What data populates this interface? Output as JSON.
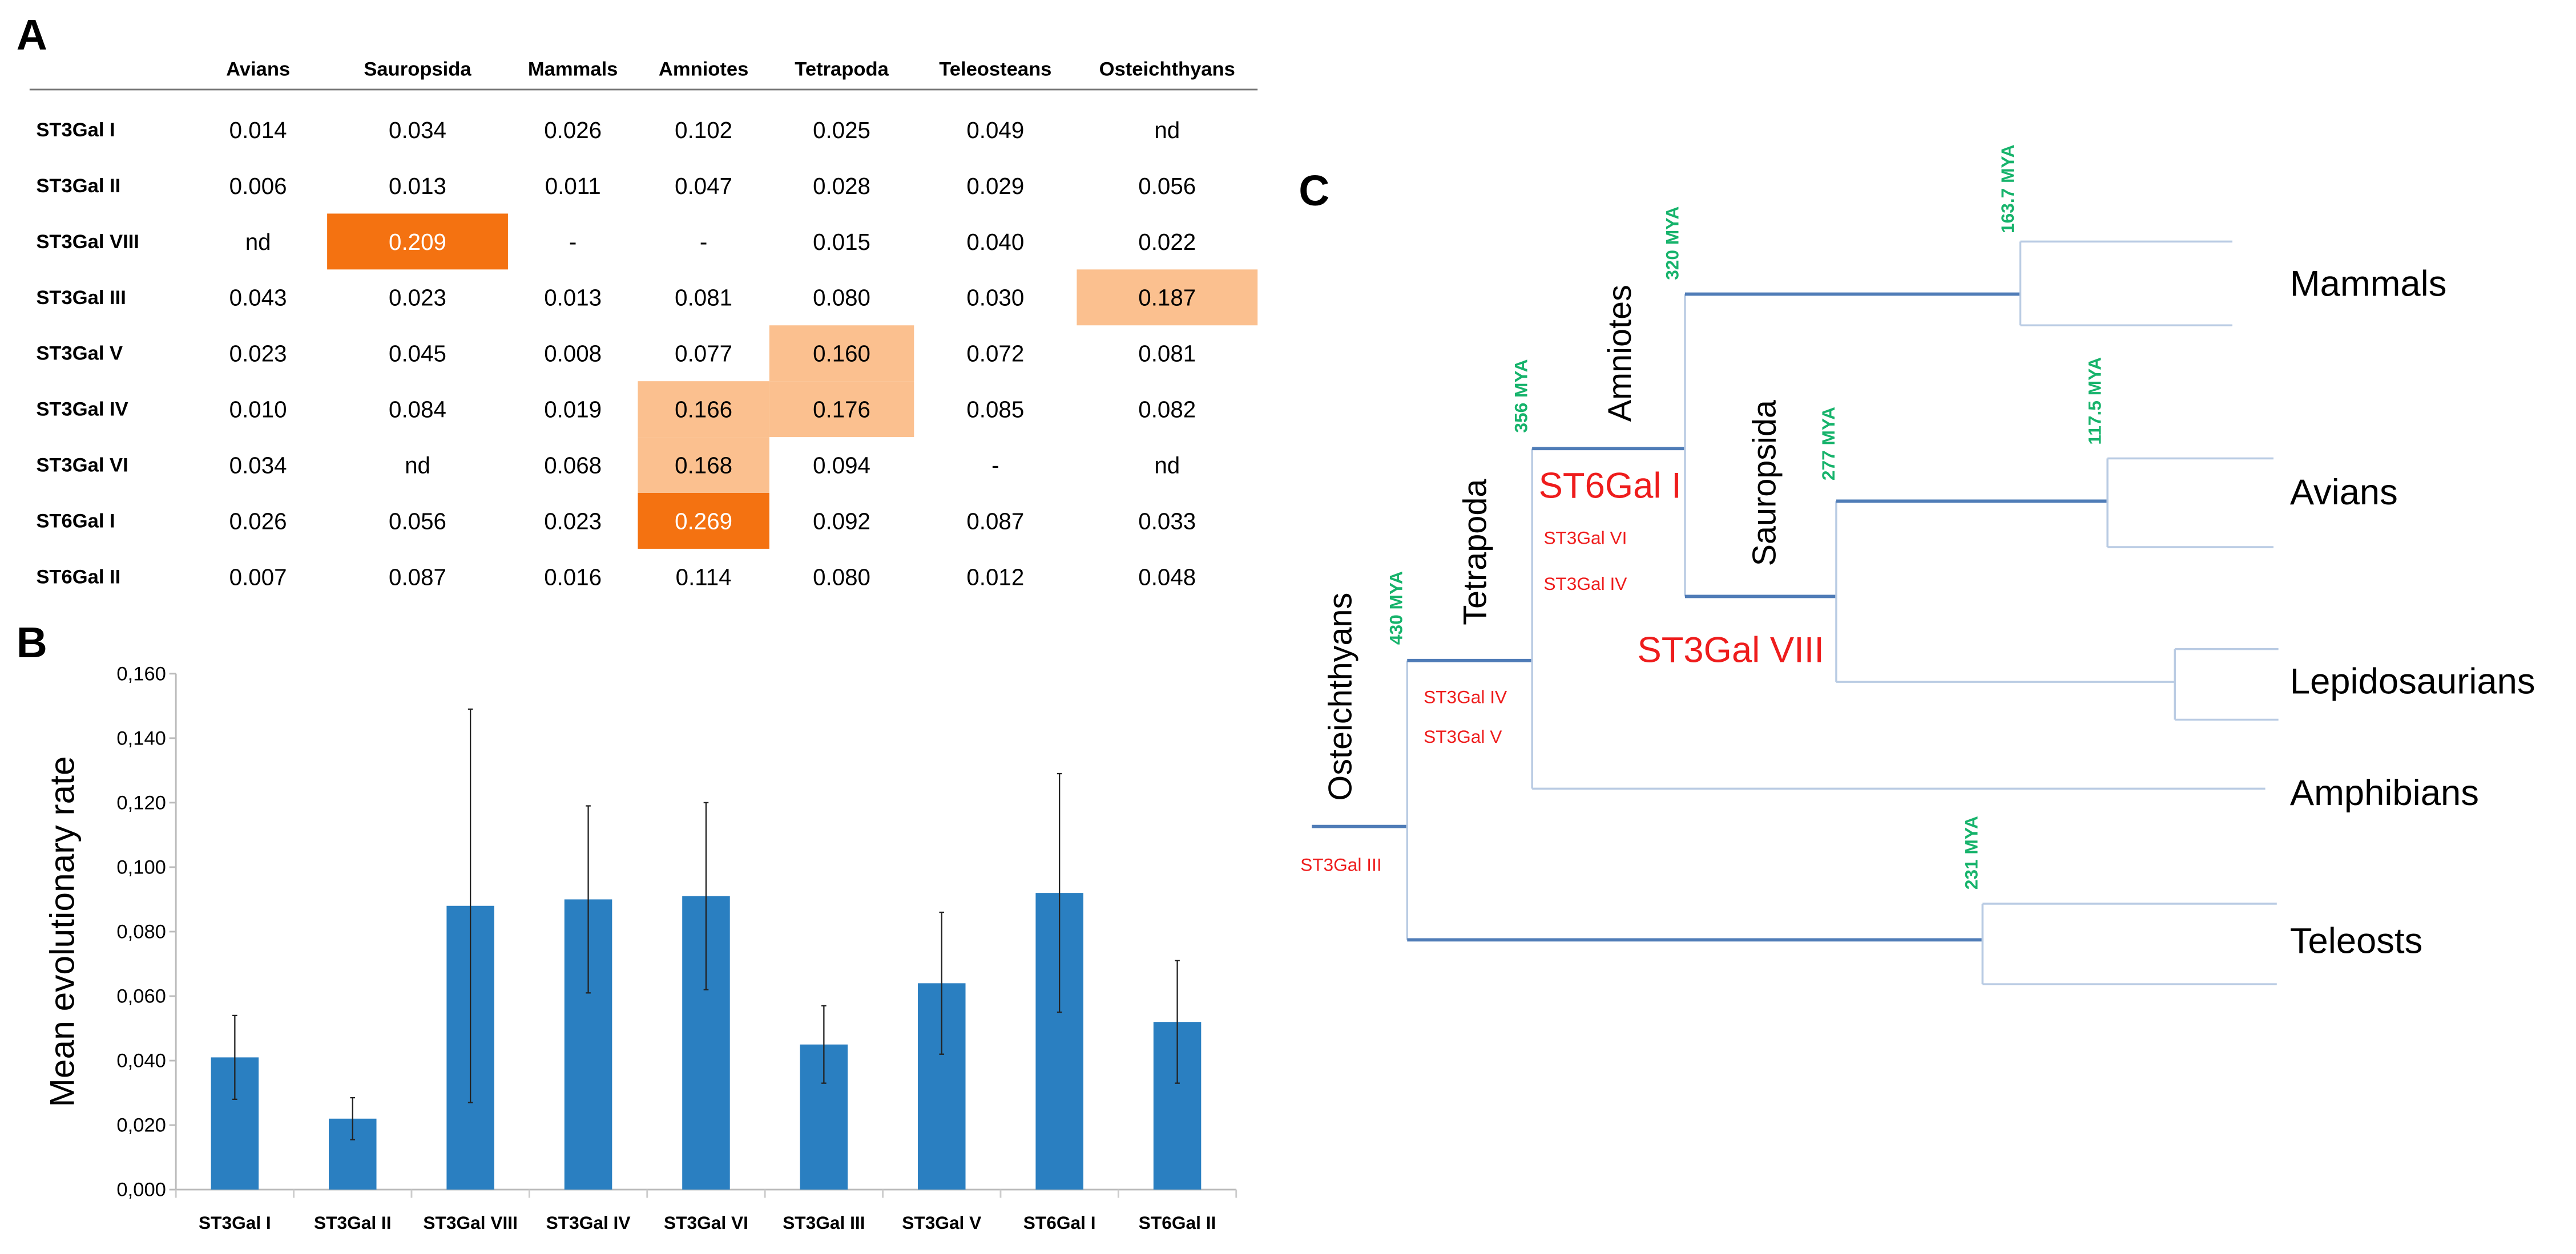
{
  "table": {
    "label": "A",
    "columns": [
      "Avians",
      "Sauropsida",
      "Mammals",
      "Amniotes",
      "Tetrapoda",
      "Teleosteans",
      "Osteichthyans"
    ],
    "rows": [
      {
        "name": "ST3Gal I",
        "cells": [
          {
            "v": "0.014"
          },
          {
            "v": "0.034"
          },
          {
            "v": "0.026"
          },
          {
            "v": "0.102"
          },
          {
            "v": "0.025"
          },
          {
            "v": "0.049"
          },
          {
            "v": "nd"
          }
        ]
      },
      {
        "name": "ST3Gal II",
        "cells": [
          {
            "v": "0.006"
          },
          {
            "v": "0.013"
          },
          {
            "v": "0.011"
          },
          {
            "v": "0.047"
          },
          {
            "v": "0.028"
          },
          {
            "v": "0.029"
          },
          {
            "v": "0.056"
          }
        ]
      },
      {
        "name": "ST3Gal VIII",
        "cells": [
          {
            "v": "nd"
          },
          {
            "v": "0.209",
            "hl": "dark"
          },
          {
            "v": "-"
          },
          {
            "v": "-"
          },
          {
            "v": "0.015"
          },
          {
            "v": "0.040"
          },
          {
            "v": "0.022"
          }
        ]
      },
      {
        "name": "ST3Gal III",
        "cells": [
          {
            "v": "0.043"
          },
          {
            "v": "0.023"
          },
          {
            "v": "0.013"
          },
          {
            "v": "0.081"
          },
          {
            "v": "0.080"
          },
          {
            "v": "0.030"
          },
          {
            "v": "0.187",
            "hl": "light"
          }
        ]
      },
      {
        "name": "ST3Gal V",
        "cells": [
          {
            "v": "0.023"
          },
          {
            "v": "0.045"
          },
          {
            "v": "0.008"
          },
          {
            "v": "0.077"
          },
          {
            "v": "0.160",
            "hl": "light"
          },
          {
            "v": "0.072"
          },
          {
            "v": "0.081"
          }
        ]
      },
      {
        "name": "ST3Gal IV",
        "cells": [
          {
            "v": "0.010"
          },
          {
            "v": "0.084"
          },
          {
            "v": "0.019"
          },
          {
            "v": "0.166",
            "hl": "light"
          },
          {
            "v": "0.176",
            "hl": "light"
          },
          {
            "v": "0.085"
          },
          {
            "v": "0.082"
          }
        ]
      },
      {
        "name": "ST3Gal VI",
        "cells": [
          {
            "v": "0.034"
          },
          {
            "v": "nd"
          },
          {
            "v": "0.068"
          },
          {
            "v": "0.168",
            "hl": "light"
          },
          {
            "v": "0.094"
          },
          {
            "v": "-"
          },
          {
            "v": "nd"
          }
        ]
      },
      {
        "name": "ST6Gal I",
        "cells": [
          {
            "v": "0.026"
          },
          {
            "v": "0.056"
          },
          {
            "v": "0.023"
          },
          {
            "v": "0.269",
            "hl": "dark"
          },
          {
            "v": "0.092"
          },
          {
            "v": "0.087"
          },
          {
            "v": "0.033"
          }
        ]
      },
      {
        "name": "ST6Gal II",
        "cells": [
          {
            "v": "0.007"
          },
          {
            "v": "0.087"
          },
          {
            "v": "0.016"
          },
          {
            "v": "0.114"
          },
          {
            "v": "0.080"
          },
          {
            "v": "0.012"
          },
          {
            "v": "0.048"
          }
        ]
      }
    ],
    "highlight_colors": {
      "dark": "#f47211",
      "light": "#fbc08f"
    }
  },
  "chart_data": {
    "type": "bar",
    "panel_label": "B",
    "title": "",
    "xlabel": "",
    "ylabel": "Mean evolutionary rate",
    "categories": [
      "ST3Gal I",
      "ST3Gal II",
      "ST3Gal VIII",
      "ST3Gal IV",
      "ST3Gal VI",
      "ST3Gal III",
      "ST3Gal V",
      "ST6Gal I",
      "ST6Gal II"
    ],
    "values": [
      0.041,
      0.022,
      0.088,
      0.09,
      0.091,
      0.045,
      0.064,
      0.092,
      0.052
    ],
    "errors": [
      0.013,
      0.0065,
      0.061,
      0.029,
      0.029,
      0.012,
      0.022,
      0.037,
      0.019
    ],
    "ylim": [
      0,
      0.16
    ],
    "yticks": [
      0,
      0.02,
      0.04,
      0.06,
      0.08,
      0.1,
      0.12,
      0.14,
      0.16
    ],
    "ytick_labels": [
      "0,000",
      "0,020",
      "0,040",
      "0,060",
      "0,080",
      "0,100",
      "0,120",
      "0,140",
      "0,160"
    ],
    "bar_color": "#2a7fc1",
    "grid": false,
    "legend": "none"
  },
  "tree": {
    "label": "C",
    "taxa": [
      "Mammals",
      "Avians",
      "Lepidosaurians",
      "Amphibians",
      "Teleosts"
    ],
    "clades": [
      "Osteichthyans",
      "Tetrapoda",
      "Amniotes",
      "Sauropsida"
    ],
    "mya": [
      "430 MYA",
      "356 MYA",
      "320 MYA",
      "277 MYA",
      "163.7 MYA",
      "117.5 MYA",
      "231 MYA"
    ],
    "genes": {
      "amniotes_major": "ST6Gal I",
      "amniotes_minor": [
        "ST3Gal VI",
        "ST3Gal IV"
      ],
      "sauropsida_major": "ST3Gal VIII",
      "tetrapoda_minor": [
        "ST3Gal IV",
        "ST3Gal V"
      ],
      "osteichthyans_minor": "ST3Gal III"
    },
    "colors": {
      "branch": "#4f7cb7",
      "tip": "#b9cbe3",
      "mya": "#16b36b",
      "gene": "#ee1c1c"
    }
  }
}
